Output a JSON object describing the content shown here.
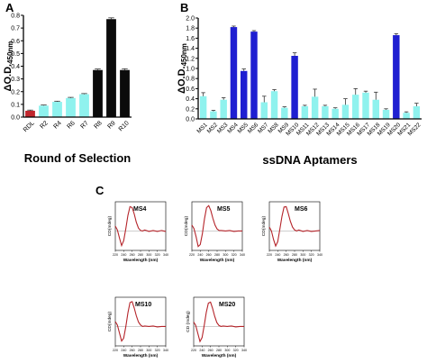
{
  "panels": {
    "A": {
      "letter": "A"
    },
    "B": {
      "letter": "B"
    },
    "C": {
      "letter": "C"
    }
  },
  "chart_data": [
    {
      "id": "A",
      "type": "bar",
      "xlabel": "Round of Selection",
      "ylabel_main": "ΔO.D.",
      "ylabel_sub": "450nm",
      "ylim": [
        0,
        0.8
      ],
      "yticks": [
        "0.0",
        "0.1",
        "0.2",
        "0.3",
        "0.4",
        "0.5",
        "0.6",
        "0.7",
        "0.8"
      ],
      "categories": [
        "RDL",
        "R2",
        "R4",
        "R6",
        "R7",
        "R8",
        "R9",
        "R10"
      ],
      "values": [
        0.05,
        0.09,
        0.12,
        0.15,
        0.18,
        0.37,
        0.77,
        0.37
      ],
      "errors": [
        0.005,
        0.005,
        0.005,
        0.005,
        0.005,
        0.008,
        0.01,
        0.01
      ],
      "colors": [
        "#c0262d",
        "#8ff2ee",
        "#8ff2ee",
        "#8ff2ee",
        "#8ff2ee",
        "#0b0b0b",
        "#0b0b0b",
        "#0b0b0b"
      ]
    },
    {
      "id": "B",
      "type": "bar",
      "xlabel": "ssDNA Aptamers",
      "ylabel_main": "ΔO.D.",
      "ylabel_sub": "450nm",
      "ylim": [
        0,
        2.0
      ],
      "yticks": [
        "0.0",
        "0.2",
        "0.4",
        "0.6",
        "0.8",
        "1.0",
        "1.2",
        "1.4",
        "1.6",
        "1.8",
        "2.0"
      ],
      "categories": [
        "MS1",
        "MS2",
        "MS3",
        "MS4",
        "MS5",
        "MS6",
        "MS7",
        "MS8",
        "MS9",
        "MS10",
        "MS11",
        "MS12",
        "MS13",
        "MS14",
        "MS15",
        "MS16",
        "MS17",
        "MS18",
        "MS19",
        "MS20",
        "MS21",
        "MS22"
      ],
      "values": [
        0.45,
        0.15,
        0.38,
        1.82,
        0.95,
        1.73,
        0.33,
        0.55,
        0.22,
        1.25,
        0.25,
        0.44,
        0.25,
        0.2,
        0.28,
        0.48,
        0.52,
        0.38,
        0.18,
        1.66,
        0.12,
        0.25
      ],
      "errors": [
        0.07,
        0.02,
        0.04,
        0.02,
        0.04,
        0.02,
        0.12,
        0.03,
        0.02,
        0.06,
        0.02,
        0.15,
        0.02,
        0.02,
        0.12,
        0.12,
        0.03,
        0.15,
        0.02,
        0.03,
        0.02,
        0.06
      ],
      "colors": [
        "#8ff2ee",
        "#8ff2ee",
        "#8ff2ee",
        "#1f1fd1",
        "#1f1fd1",
        "#1f1fd1",
        "#8ff2ee",
        "#8ff2ee",
        "#8ff2ee",
        "#1f1fd1",
        "#8ff2ee",
        "#8ff2ee",
        "#8ff2ee",
        "#8ff2ee",
        "#8ff2ee",
        "#8ff2ee",
        "#8ff2ee",
        "#8ff2ee",
        "#8ff2ee",
        "#1f1fd1",
        "#8ff2ee",
        "#8ff2ee"
      ]
    },
    {
      "id": "C1",
      "type": "line",
      "label": "MS4",
      "xlabel": "Wavelength (nm)",
      "ylabel": "CD(mdeg)",
      "xlim": [
        220,
        340
      ],
      "ylim": [
        -4,
        6
      ],
      "xticks": [
        "220",
        "240",
        "260",
        "280",
        "300",
        "320",
        "340"
      ],
      "x": [
        220,
        225,
        230,
        235,
        240,
        245,
        250,
        255,
        260,
        265,
        270,
        275,
        280,
        285,
        290,
        300,
        310,
        320,
        330,
        340
      ],
      "y": [
        1.0,
        0.2,
        -1.5,
        -3.0,
        -2.0,
        0.5,
        3.2,
        5.0,
        4.8,
        3.5,
        1.8,
        0.6,
        0.1,
        0.0,
        0.2,
        -0.1,
        0.1,
        -0.1,
        0.1,
        -0.1
      ]
    },
    {
      "id": "C2",
      "type": "line",
      "label": "MS5",
      "xlabel": "Wavelength (nm)",
      "ylabel": "CD(mdeg)",
      "xlim": [
        220,
        340
      ],
      "ylim": [
        -4,
        6
      ],
      "xticks": [
        "220",
        "240",
        "260",
        "280",
        "300",
        "320",
        "340"
      ],
      "x": [
        220,
        225,
        230,
        235,
        240,
        245,
        250,
        255,
        260,
        265,
        270,
        275,
        280,
        285,
        290,
        300,
        310,
        320,
        330,
        340
      ],
      "y": [
        1.2,
        0.5,
        -1.2,
        -3.2,
        -2.8,
        -0.5,
        2.5,
        4.8,
        5.2,
        4.2,
        2.6,
        1.2,
        0.4,
        0.1,
        0.1,
        0.0,
        0.1,
        -0.1,
        0.0,
        0.0
      ]
    },
    {
      "id": "C3",
      "type": "line",
      "label": "MS6",
      "xlabel": "Wavelength (nm)",
      "ylabel": "CD(mdeg)",
      "xlim": [
        220,
        340
      ],
      "ylim": [
        -4,
        6
      ],
      "xticks": [
        "220",
        "240",
        "260",
        "280",
        "300",
        "320",
        "340"
      ],
      "x": [
        220,
        225,
        230,
        235,
        240,
        245,
        250,
        255,
        260,
        265,
        270,
        275,
        280,
        285,
        290,
        300,
        310,
        320,
        330,
        340
      ],
      "y": [
        0.8,
        0.0,
        -1.8,
        -3.1,
        -2.2,
        0.4,
        3.0,
        4.9,
        5.0,
        3.6,
        2.0,
        0.8,
        0.2,
        0.0,
        0.2,
        -0.1,
        0.1,
        -0.1,
        0.0,
        0.1
      ]
    },
    {
      "id": "C4",
      "type": "line",
      "label": "MS10",
      "xlabel": "Wavelength (nm)",
      "ylabel": "CD(mdeg)",
      "xlim": [
        220,
        340
      ],
      "ylim": [
        -4,
        6
      ],
      "xticks": [
        "220",
        "240",
        "260",
        "280",
        "300",
        "320",
        "340"
      ],
      "x": [
        220,
        225,
        230,
        235,
        240,
        245,
        250,
        255,
        260,
        265,
        270,
        275,
        280,
        285,
        290,
        300,
        310,
        320,
        330,
        340
      ],
      "y": [
        1.0,
        0.3,
        -1.4,
        -3.0,
        -2.4,
        0.0,
        2.8,
        4.9,
        5.1,
        3.8,
        2.2,
        0.9,
        0.3,
        0.0,
        0.1,
        0.0,
        0.1,
        -0.1,
        0.0,
        0.0
      ]
    },
    {
      "id": "C5",
      "type": "line",
      "label": "MS20",
      "xlabel": "Wavelength (nm)",
      "ylabel": "CD (mdeg)",
      "xlim": [
        220,
        340
      ],
      "ylim": [
        -4,
        6
      ],
      "xticks": [
        "220",
        "240",
        "260",
        "280",
        "300",
        "320",
        "340"
      ],
      "x": [
        220,
        225,
        230,
        235,
        240,
        245,
        250,
        255,
        260,
        265,
        270,
        275,
        280,
        285,
        290,
        300,
        310,
        320,
        330,
        340
      ],
      "y": [
        0.9,
        0.2,
        -1.5,
        -3.1,
        -2.3,
        0.2,
        2.9,
        4.8,
        5.0,
        3.7,
        2.1,
        0.8,
        0.2,
        0.0,
        0.1,
        0.0,
        0.1,
        -0.1,
        0.0,
        0.0
      ]
    }
  ]
}
